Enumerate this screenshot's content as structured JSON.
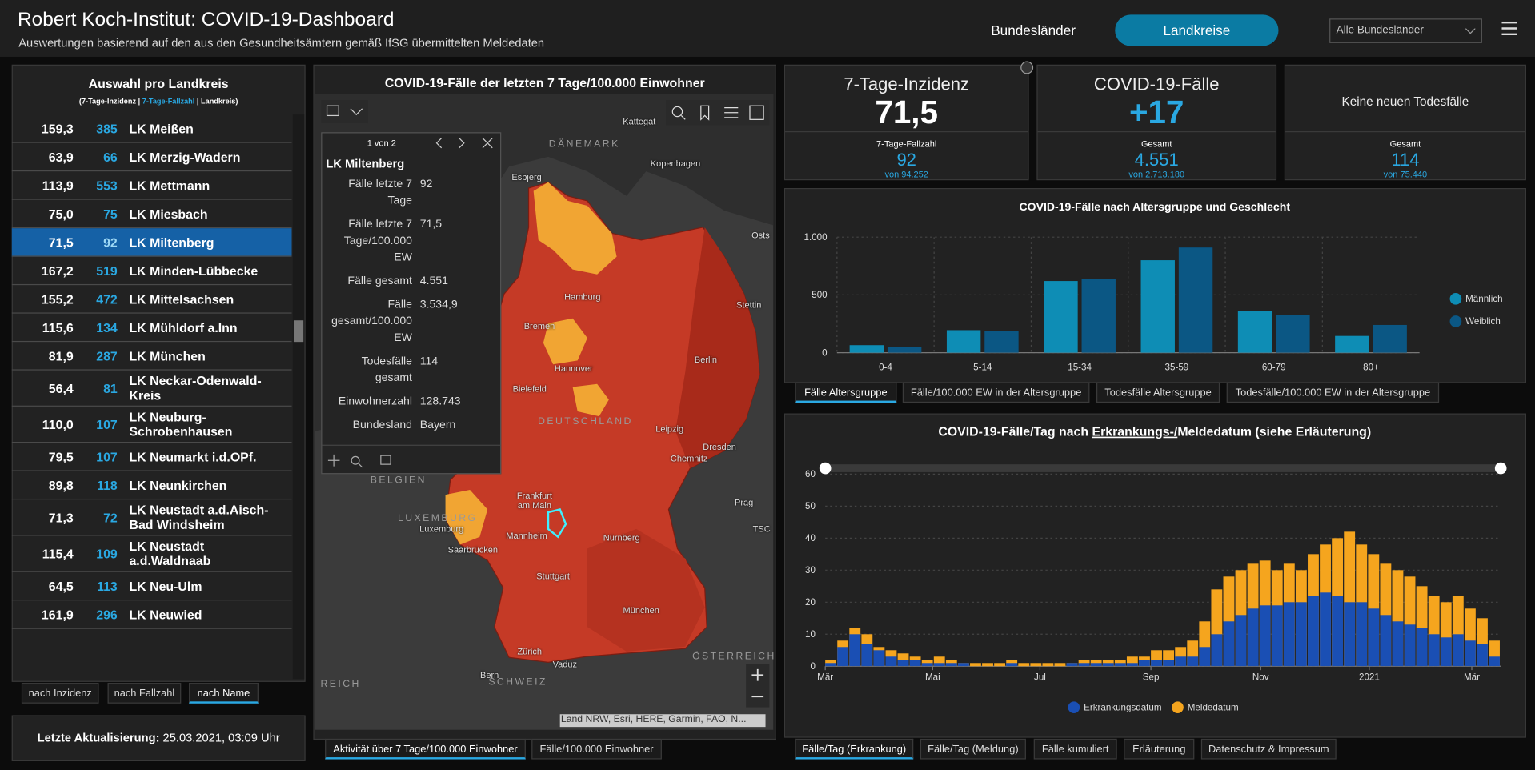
{
  "header": {
    "title": "Robert Koch-Institut: COVID-19-Dashboard",
    "subtitle": "Auswertungen basierend auf den aus den Gesundheitsämtern gemäß IfSG übermittelten Meldedaten",
    "nav": [
      "Bundesländer",
      "Landkreise"
    ],
    "active_nav": 1,
    "dropdown": "Alle Bundesländer"
  },
  "list": {
    "title": "Auswahl pro Landkreis",
    "legend": [
      "(7-Tage-Inzidenz | ",
      "7-Tage-Fallzahl",
      " | Landkreis)"
    ],
    "selected_row": 4,
    "rows": [
      {
        "incidence": "159,3",
        "cases": 385,
        "name": "LK Meißen"
      },
      {
        "incidence": "63,9",
        "cases": 66,
        "name": "LK Merzig-Wadern"
      },
      {
        "incidence": "113,9",
        "cases": 553,
        "name": "LK Mettmann"
      },
      {
        "incidence": "75,0",
        "cases": 75,
        "name": "LK Miesbach"
      },
      {
        "incidence": "71,5",
        "cases": 92,
        "name": "LK Miltenberg"
      },
      {
        "incidence": "167,2",
        "cases": 519,
        "name": "LK Minden-Lübbecke"
      },
      {
        "incidence": "155,2",
        "cases": 472,
        "name": "LK Mittelsachsen"
      },
      {
        "incidence": "115,6",
        "cases": 134,
        "name": "LK Mühldorf a.Inn"
      },
      {
        "incidence": "81,9",
        "cases": 287,
        "name": "LK München"
      },
      {
        "incidence": "56,4",
        "cases": 81,
        "name": "LK Neckar-Odenwald-Kreis"
      },
      {
        "incidence": "110,0",
        "cases": 107,
        "name": "LK Neuburg-Schrobenhausen"
      },
      {
        "incidence": "79,5",
        "cases": 107,
        "name": "LK Neumarkt i.d.OPf."
      },
      {
        "incidence": "89,8",
        "cases": 118,
        "name": "LK Neunkirchen"
      },
      {
        "incidence": "71,3",
        "cases": 72,
        "name": "LK Neustadt a.d.Aisch-Bad Windsheim"
      },
      {
        "incidence": "115,4",
        "cases": 109,
        "name": "LK Neustadt a.d.Waldnaab"
      },
      {
        "incidence": "64,5",
        "cases": 113,
        "name": "LK Neu-Ulm"
      },
      {
        "incidence": "161,9",
        "cases": 296,
        "name": "LK Neuwied"
      }
    ],
    "sort_buttons": [
      "nach Inzidenz",
      "nach Fallzahl",
      "nach Name"
    ],
    "active_sort": 2,
    "update": [
      "Letzte Aktualisierung:",
      " 25.03.2021, 03:09 Uhr"
    ]
  },
  "map": {
    "title": "COVID-19-Fälle der letzten 7 Tage/100.000 Einwohner",
    "labels": [
      "Kattegat",
      "DÄNEMARK",
      "Esbjerg",
      "Kopenhagen",
      "Osts",
      "Hamburg",
      "Stettin",
      "Bremen",
      "Hannover",
      "Berlin",
      "Bielefeld",
      "DEUTSCHLAND",
      "Leipzig",
      "Dresden",
      "Chemnitz",
      "BELGIEN",
      "Frankfurt",
      "am Main",
      "Prag",
      "TSC",
      "LUXEMBURG",
      "Luxemburg",
      "Mannheim",
      "Nürnberg",
      "Saarbrücken",
      "Stuttgart",
      "München",
      "Zürich",
      "ÖSTERREICH",
      "Vaduz",
      "REICH",
      "Bern",
      "SCHWEIZ"
    ],
    "popup": {
      "pager": "1 von 2",
      "title": "LK Miltenberg",
      "fields": [
        [
          "Fälle letzte 7 Tage",
          "92"
        ],
        [
          "Fälle letzte 7 Tage/100.000 EW",
          "71,5"
        ],
        [
          "Fälle gesamt",
          "4.551"
        ],
        [
          "Fälle gesamt/100.000 EW",
          "3.534,9"
        ],
        [
          "Todesfälle gesamt",
          "114"
        ],
        [
          "Einwohnerzahl",
          "128.743"
        ],
        [
          "Bundesland",
          "Bayern"
        ]
      ]
    },
    "attribution": "Land NRW, Esri, HERE, Garmin, FAO, N...",
    "tabs": [
      "Aktivität über 7 Tage/100.000 Einwohner",
      "Fälle/100.000 Einwohner"
    ],
    "active_tab": 0
  },
  "kpis": [
    {
      "title": "7-Tage-Inzidenz",
      "value": "71,5",
      "sub_label": "7-Tage-Fallzahl",
      "sub_value": "92",
      "sub_total": "von 94.252"
    },
    {
      "title": "COVID-19-Fälle",
      "value": "+17",
      "sub_label": "Gesamt",
      "sub_value": "4.551",
      "sub_total": "von 2.713.180"
    },
    {
      "title": "Keine neuen Todesfälle",
      "sub_label": "Gesamt",
      "sub_value": "114",
      "sub_total": "von 75.440"
    }
  ],
  "chart_data": [
    {
      "type": "bar",
      "barmode": "grouped",
      "title": "COVID-19-Fälle nach Altersgruppe und Geschlecht",
      "categories": [
        "0-4",
        "5-14",
        "15-34",
        "35-59",
        "60-79",
        "80+"
      ],
      "series": [
        {
          "name": "Männlich",
          "color": "#0e8db5",
          "values": [
            65,
            195,
            620,
            800,
            360,
            145
          ]
        },
        {
          "name": "Weiblich",
          "color": "#0b5784",
          "values": [
            50,
            190,
            640,
            910,
            325,
            240
          ]
        }
      ],
      "ylim": [
        0,
        1000
      ],
      "yticks": [
        0,
        500,
        {
          "value": 1000,
          "label": "1.000"
        }
      ],
      "grid": true,
      "legend": "right"
    },
    {
      "type": "bar",
      "barmode": "overlay",
      "title_parts": [
        "COVID-19-Fälle/Tag nach ",
        "Erkrankungs-/",
        "Meldedatum (siehe Erläuterung)"
      ],
      "x": [
        0,
        1,
        2,
        3,
        4,
        5,
        6,
        7,
        8,
        9,
        10,
        11,
        12,
        13,
        14,
        15,
        16,
        17,
        18,
        19,
        20,
        21,
        22,
        23,
        24,
        25,
        26,
        27,
        28,
        29,
        30,
        31,
        32,
        33,
        34,
        35,
        36,
        37,
        38,
        39,
        40,
        41,
        42,
        43,
        44,
        45,
        46,
        47,
        48,
        49,
        50,
        51,
        52,
        53,
        54,
        55
      ],
      "series": [
        {
          "name": "Meldedatum",
          "color": "#f5a51e",
          "values": [
            2,
            8,
            12,
            10,
            6,
            5,
            4,
            3,
            2,
            3,
            2,
            1,
            1,
            1,
            1,
            2,
            1,
            1,
            1,
            1,
            1,
            2,
            2,
            2,
            2,
            3,
            3,
            5,
            5,
            6,
            8,
            14,
            24,
            28,
            30,
            32,
            33,
            30,
            32,
            30,
            35,
            38,
            40,
            42,
            38,
            35,
            32,
            30,
            28,
            25,
            22,
            20,
            22,
            18,
            15,
            8
          ]
        },
        {
          "name": "Erkrankungsdatum",
          "color": "#1a4fb4",
          "values": [
            1,
            6,
            10,
            7,
            5,
            3,
            2,
            2,
            1,
            1,
            1,
            1,
            0,
            0,
            0,
            1,
            0,
            0,
            0,
            0,
            1,
            1,
            1,
            1,
            1,
            1,
            2,
            2,
            2,
            3,
            3,
            6,
            10,
            14,
            16,
            18,
            19,
            19,
            20,
            20,
            22,
            23,
            22,
            20,
            20,
            18,
            16,
            14,
            13,
            12,
            10,
            9,
            10,
            8,
            7,
            3
          ]
        }
      ],
      "legend_order": [
        1,
        0
      ],
      "xlim": [
        0,
        56
      ],
      "xticks": [
        {
          "value": 0,
          "label": "Mär"
        },
        {
          "value": 8.9,
          "label": "Mai"
        },
        {
          "value": 17.8,
          "label": "Jul"
        },
        {
          "value": 27,
          "label": "Sep"
        },
        {
          "value": 36.1,
          "label": "Nov"
        },
        {
          "value": 45.1,
          "label": "2021"
        },
        {
          "value": 53.6,
          "label": "Mär"
        }
      ],
      "ylim": [
        0,
        60
      ],
      "yticks": [
        0,
        10,
        20,
        30,
        40,
        50,
        60
      ],
      "grid": true,
      "legend": "bottom"
    }
  ],
  "chart_tabs": [
    [
      "Fälle Altersgruppe",
      "Fälle/100.000 EW in der Altersgruppe",
      "Todesfälle Altersgruppe",
      "Todesfälle/100.000 EW in der Altersgruppe"
    ],
    [
      "Fälle/Tag (Erkrankung)",
      "Fälle/Tag (Meldung)",
      "Fälle kumuliert",
      "Erläuterung",
      "Datenschutz & Impressum"
    ]
  ]
}
